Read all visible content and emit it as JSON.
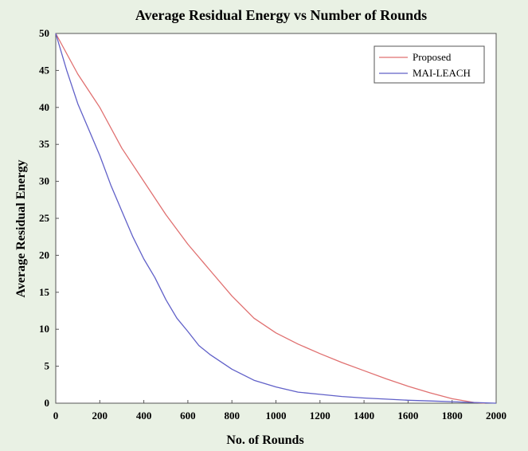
{
  "chart_data": {
    "type": "line",
    "title": "Average Residual Energy vs Number of Rounds",
    "xlabel": "No. of Rounds",
    "ylabel": "Average Residual Energy",
    "xlim": [
      0,
      2000
    ],
    "ylim": [
      0,
      50
    ],
    "xticks": [
      0,
      200,
      400,
      600,
      800,
      1000,
      1200,
      1400,
      1600,
      1800,
      2000
    ],
    "yticks": [
      0,
      5,
      10,
      15,
      20,
      25,
      30,
      35,
      40,
      45,
      50
    ],
    "grid": false,
    "legend_position": "top-right",
    "series": [
      {
        "name": "Proposed",
        "color": "#e07070",
        "x": [
          0,
          100,
          200,
          300,
          400,
          500,
          600,
          700,
          800,
          900,
          1000,
          1100,
          1200,
          1300,
          1400,
          1500,
          1600,
          1700,
          1800,
          1900,
          1950
        ],
        "y": [
          50,
          44.5,
          40,
          34.5,
          30,
          25.5,
          21.5,
          18,
          14.5,
          11.5,
          9.5,
          8,
          6.7,
          5.5,
          4.4,
          3.3,
          2.3,
          1.4,
          0.6,
          0.1,
          0
        ]
      },
      {
        "name": "MAI-LEACH",
        "color": "#6060c8",
        "x": [
          0,
          50,
          100,
          150,
          200,
          250,
          300,
          350,
          400,
          450,
          500,
          550,
          600,
          650,
          700,
          800,
          900,
          1000,
          1100,
          1200,
          1300,
          1400,
          1500,
          1600,
          1700,
          1800,
          1900,
          2000
        ],
        "y": [
          50,
          45,
          40.5,
          37,
          33.5,
          29.5,
          26,
          22.5,
          19.5,
          17,
          14,
          11.5,
          9.7,
          7.8,
          6.6,
          4.6,
          3.1,
          2.2,
          1.5,
          1.2,
          0.9,
          0.7,
          0.55,
          0.4,
          0.3,
          0.2,
          0.1,
          0
        ]
      }
    ]
  }
}
